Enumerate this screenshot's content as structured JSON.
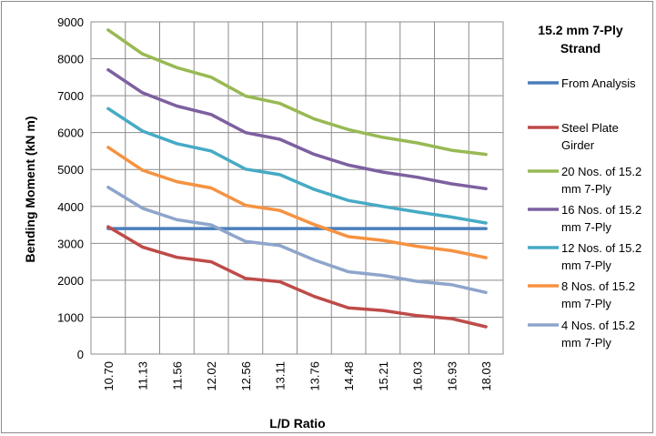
{
  "chart_data": {
    "type": "line",
    "title": "",
    "xlabel": "L/D Ratio",
    "ylabel": "Bending Moment (kN m)",
    "ylim": [
      0,
      9000
    ],
    "yticks": [
      "0",
      "1000",
      "2000",
      "3000",
      "4000",
      "5000",
      "6000",
      "7000",
      "8000",
      "9000"
    ],
    "categories": [
      "10.70",
      "11.13",
      "11.56",
      "12.02",
      "12.56",
      "13.11",
      "13.76",
      "14.48",
      "15.21",
      "16.03",
      "16.93",
      "18.03"
    ],
    "grid": true,
    "legend_position": "right",
    "legend_title_lines": [
      "15.2 mm  7-Ply",
      "Strand"
    ],
    "series": [
      {
        "name": "From Analysis",
        "label_lines": [
          "From Analysis"
        ],
        "color": "#4a7ebb",
        "values": [
          3400,
          3400,
          3400,
          3400,
          3400,
          3400,
          3400,
          3400,
          3400,
          3400,
          3400,
          3400
        ]
      },
      {
        "name": "Steel Plate Girder",
        "label_lines": [
          "Steel Plate",
          "Girder"
        ],
        "color": "#be4b48",
        "values": [
          3450,
          2900,
          2620,
          2500,
          2050,
          1960,
          1560,
          1250,
          1180,
          1040,
          960,
          740
        ]
      },
      {
        "name": "20 Nos. of 15.2 mm 7-Ply",
        "label_lines": [
          "20 Nos. of 15.2",
          "mm 7-Ply"
        ],
        "color": "#98b954",
        "values": [
          8780,
          8130,
          7760,
          7500,
          6990,
          6790,
          6370,
          6080,
          5870,
          5720,
          5520,
          5410
        ]
      },
      {
        "name": "16 Nos. of 15.2 mm 7-Ply",
        "label_lines": [
          "16 Nos. of 15.2",
          "mm 7-Ply"
        ],
        "color": "#7d60a0",
        "values": [
          7700,
          7080,
          6720,
          6490,
          6000,
          5820,
          5410,
          5120,
          4930,
          4790,
          4610,
          4480
        ]
      },
      {
        "name": "12 Nos. of 15.2 mm 7-Ply",
        "label_lines": [
          "12 Nos. of 15.2",
          "mm 7-Ply"
        ],
        "color": "#46aac5",
        "values": [
          6650,
          6040,
          5700,
          5500,
          5010,
          4860,
          4460,
          4160,
          4000,
          3850,
          3710,
          3550
        ]
      },
      {
        "name": "8 Nos. of 15.2 mm 7-Ply",
        "label_lines": [
          "8 Nos. of 15.2",
          "mm 7-Ply"
        ],
        "color": "#f69240",
        "values": [
          5600,
          4980,
          4670,
          4500,
          4030,
          3890,
          3510,
          3180,
          3080,
          2920,
          2800,
          2610
        ]
      },
      {
        "name": "4 Nos. of 15.2 mm 7-Ply",
        "label_lines": [
          "4 Nos. of 15.2",
          "mm 7-Ply"
        ],
        "color": "#8ea5cb",
        "values": [
          4520,
          3950,
          3640,
          3500,
          3050,
          2940,
          2550,
          2230,
          2130,
          1970,
          1880,
          1670
        ]
      }
    ]
  }
}
